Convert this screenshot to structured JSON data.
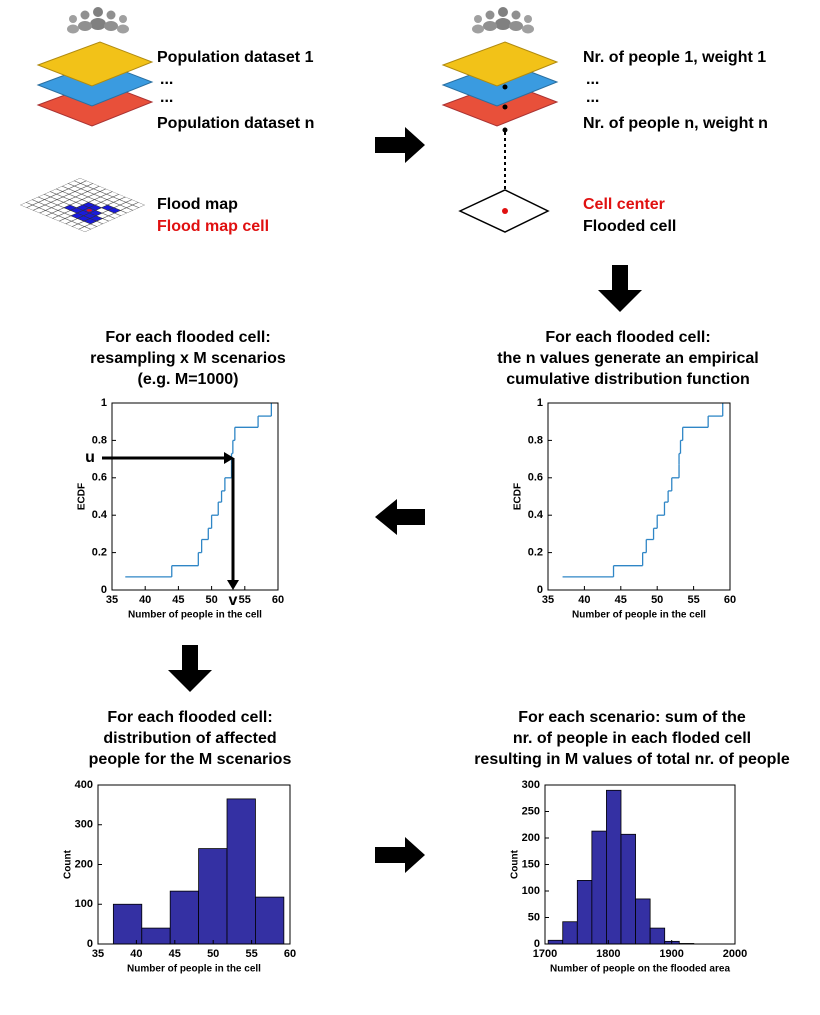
{
  "diagram": {
    "population_layers": [
      "Population dataset 1",
      "...",
      "...",
      "Population dataset n"
    ],
    "flood_map": [
      "Flood map",
      "Flood map cell"
    ],
    "cell_layers": [
      "Nr. of people 1, weight 1",
      "...",
      "...",
      "Nr. of people n, weight n"
    ],
    "cell": [
      "Cell center",
      "Flooded cell"
    ]
  },
  "chart_data": [
    {
      "type": "step",
      "title": [
        "For each flooded cell:",
        "resampling x M scenarios",
        "(e.g. M=1000)"
      ],
      "x": [
        37,
        44,
        48,
        48.5,
        49.5,
        50,
        51,
        51.5,
        52,
        53,
        53,
        53.2,
        53.5,
        57,
        59
      ],
      "values": [
        0.07,
        0.13,
        0.2,
        0.27,
        0.33,
        0.4,
        0.47,
        0.53,
        0.6,
        0.67,
        0.73,
        0.8,
        0.87,
        0.93,
        1
      ],
      "color": "#2f86c6",
      "xlim": [
        35,
        60
      ],
      "xticks": [
        35,
        40,
        45,
        50,
        55,
        60
      ],
      "ylim": [
        0,
        1
      ],
      "yticks": [
        0,
        0.2,
        0.4,
        0.6,
        0.8,
        1
      ],
      "xlabel": "Number of people in the cell",
      "ylabel": "ECDF",
      "annotations": [
        "u",
        "v"
      ]
    },
    {
      "type": "step",
      "title": [
        "For each flooded cell:",
        "the n values generate an empirical",
        "cumulative distribution function"
      ],
      "x": [
        37,
        44,
        48,
        48.5,
        49.5,
        50,
        51,
        51.5,
        52,
        53,
        53,
        53.2,
        53.5,
        57,
        59
      ],
      "values": [
        0.07,
        0.13,
        0.2,
        0.27,
        0.33,
        0.4,
        0.47,
        0.53,
        0.6,
        0.67,
        0.73,
        0.8,
        0.87,
        0.93,
        1
      ],
      "color": "#2f86c6",
      "xlim": [
        35,
        60
      ],
      "xticks": [
        35,
        40,
        45,
        50,
        55,
        60
      ],
      "ylim": [
        0,
        1
      ],
      "yticks": [
        0,
        0.2,
        0.4,
        0.6,
        0.8,
        1
      ],
      "xlabel": "Number of people in the cell",
      "ylabel": "ECDF"
    },
    {
      "type": "histogram",
      "title": [
        "For each flooded cell:",
        "distribution of affected",
        "people for the M scenarios"
      ],
      "bins": [
        37,
        40.7,
        44.4,
        48.1,
        51.8,
        55.5,
        59.2
      ],
      "values": [
        100,
        40,
        133,
        240,
        365,
        118
      ],
      "color": "#3430a3",
      "xlim": [
        35,
        60
      ],
      "xticks": [
        35,
        40,
        45,
        50,
        55,
        60
      ],
      "ylim": [
        0,
        400
      ],
      "yticks": [
        0,
        100,
        200,
        300,
        400
      ],
      "xlabel": "Number of people in the cell",
      "ylabel": "Count"
    },
    {
      "type": "histogram",
      "title": [
        "For each scenario: sum of the",
        "nr. of people in each floded cell",
        "resulting in M values of total nr. of people"
      ],
      "bins": [
        1705,
        1728,
        1751,
        1774,
        1797,
        1820,
        1843,
        1866,
        1889,
        1912,
        1935
      ],
      "values": [
        7,
        42,
        120,
        213,
        290,
        207,
        85,
        30,
        5,
        1
      ],
      "color": "#3430a3",
      "xlim": [
        1700,
        2000
      ],
      "xticks": [
        1700,
        1800,
        1900,
        2000
      ],
      "ylim": [
        0,
        300
      ],
      "yticks": [
        0,
        50,
        100,
        150,
        200,
        250,
        300
      ],
      "xlabel": "Number of people on the flooded area",
      "ylabel": "Count"
    }
  ]
}
